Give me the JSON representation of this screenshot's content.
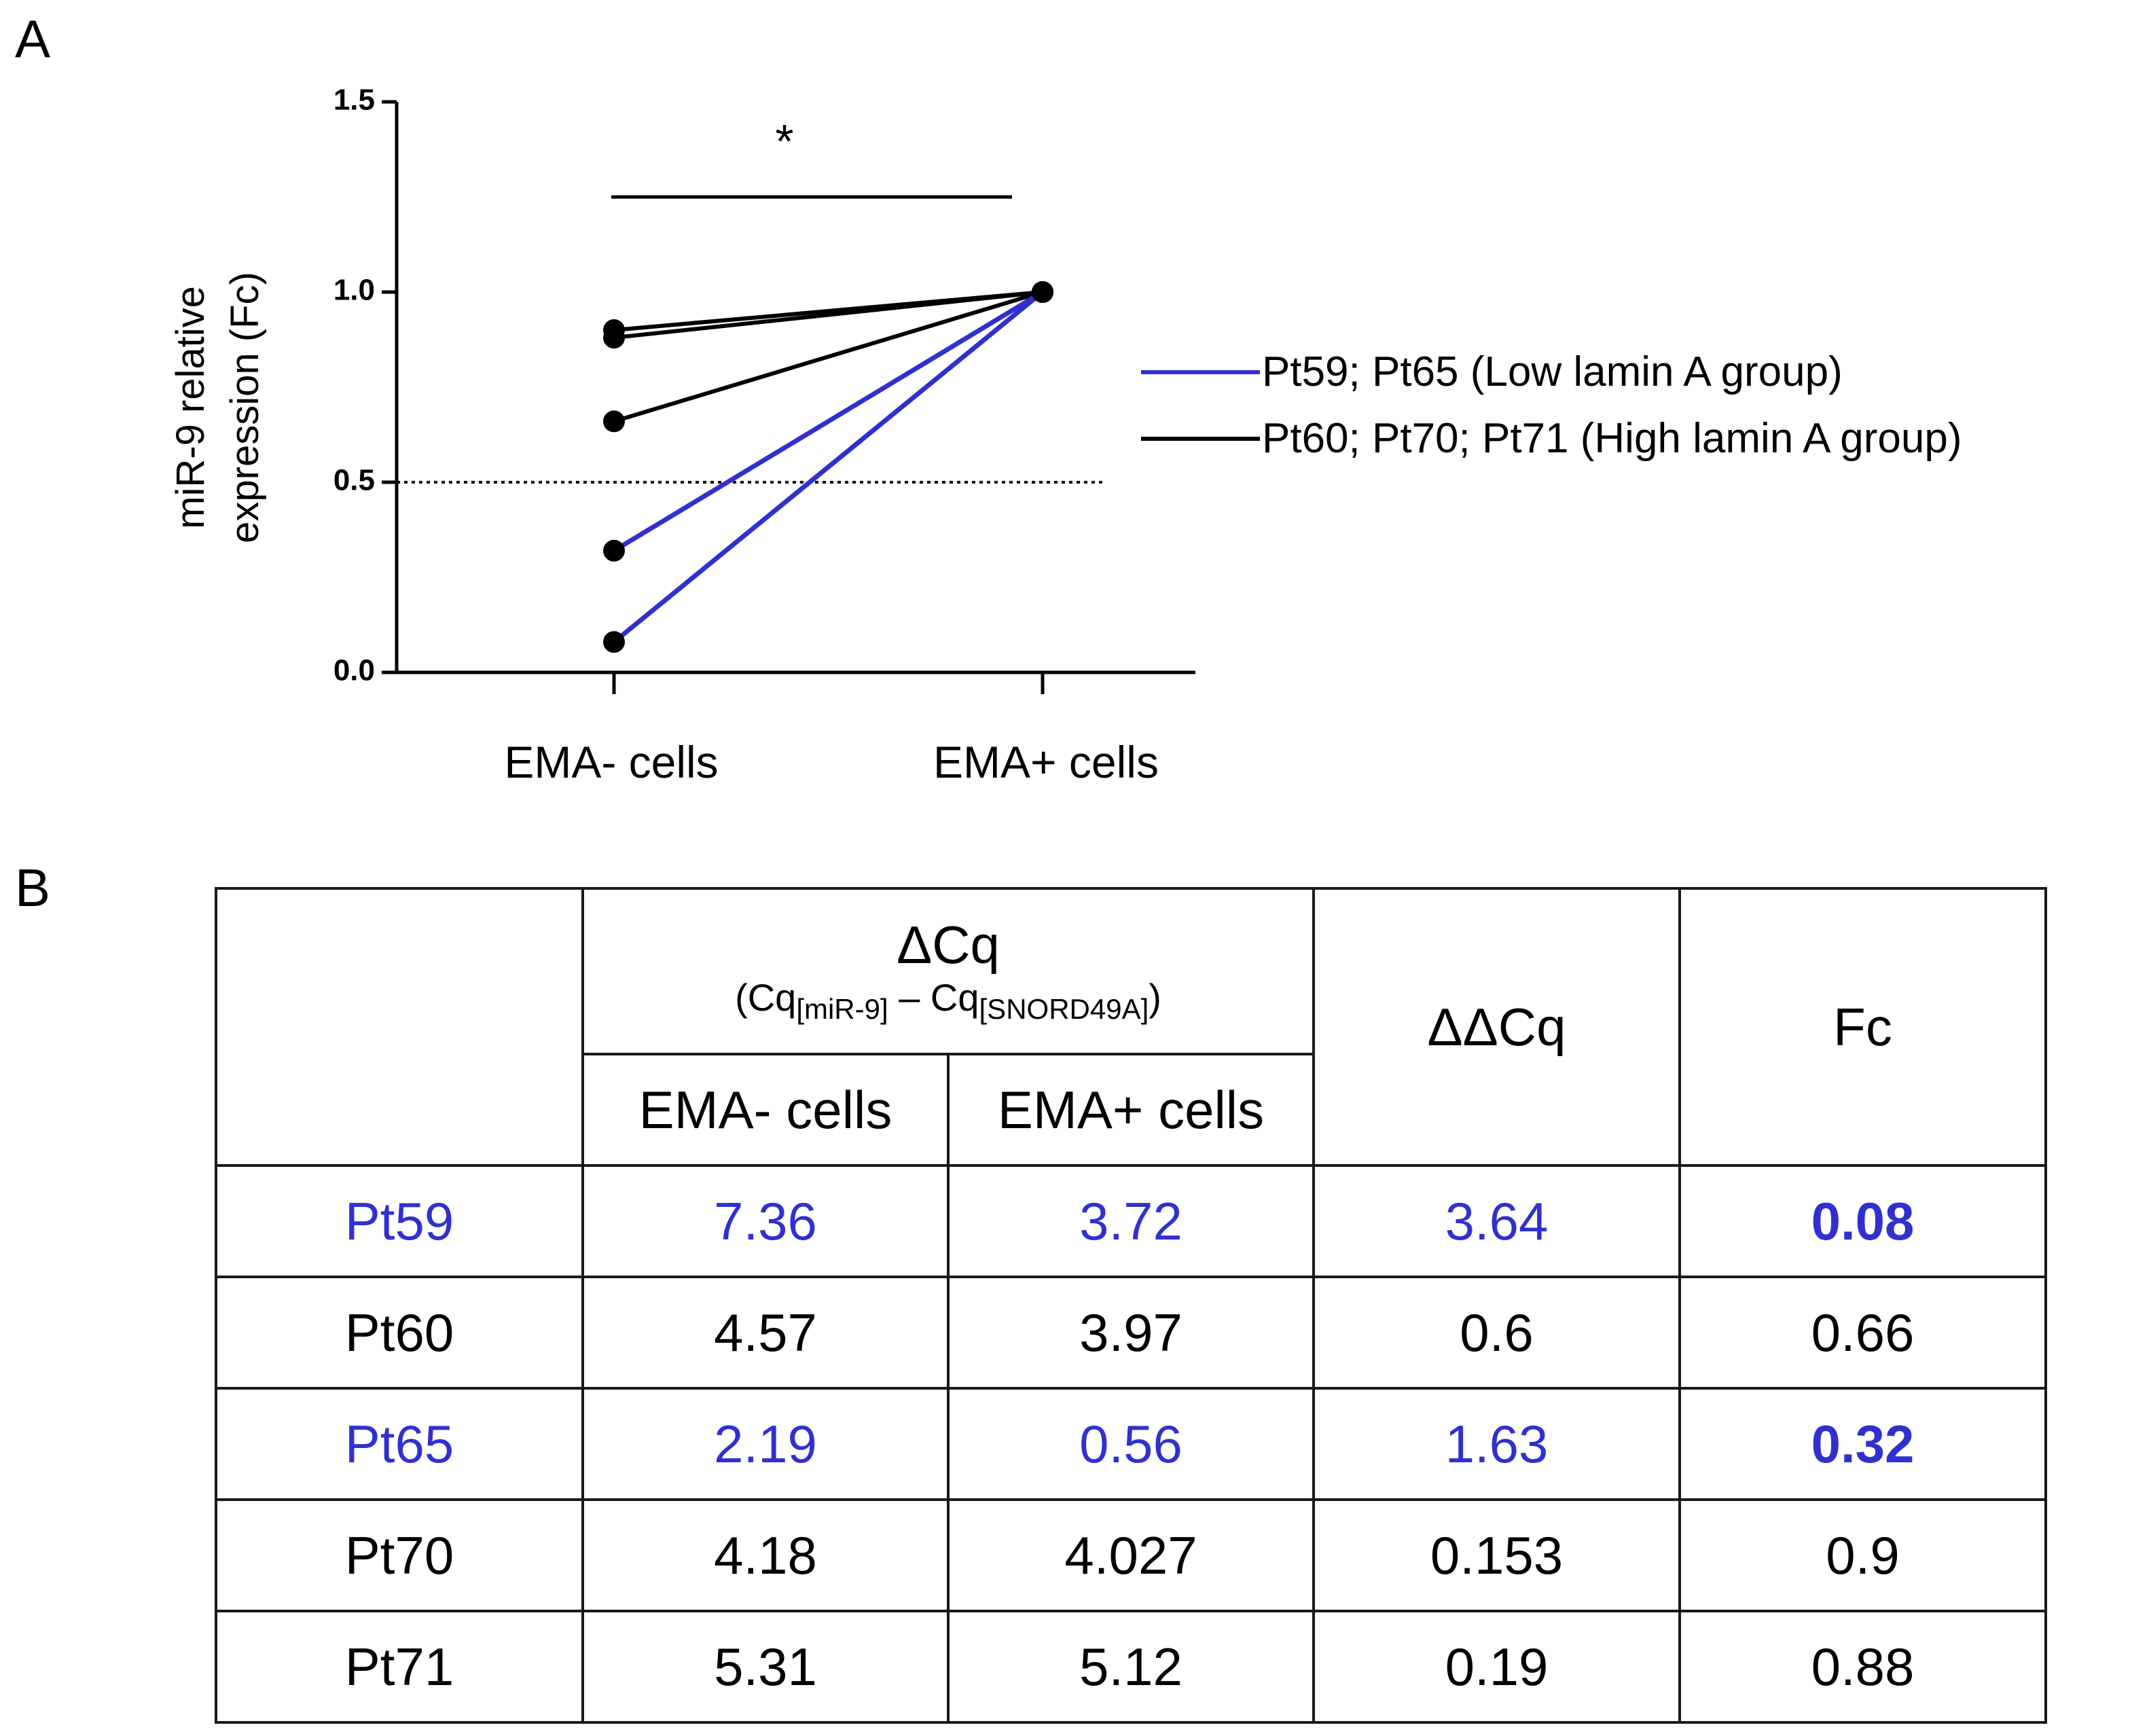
{
  "panels": {
    "a": "A",
    "b": "B"
  },
  "chart_data": {
    "type": "line",
    "categories": [
      "EMA- cells",
      "EMA+ cells"
    ],
    "ylabel_line1": "miR-9 relative",
    "ylabel_line2": "expression (Fc)",
    "ylim": [
      0,
      1.5
    ],
    "yticks": [
      "0.0",
      "0.5",
      "1.0",
      "1.5"
    ],
    "yticks_values": [
      0,
      0.5,
      1.0,
      1.5
    ],
    "threshold": 0.5,
    "significance": "*",
    "series": [
      {
        "name": "Pt59",
        "group": "low",
        "values": [
          0.08,
          1.0
        ]
      },
      {
        "name": "Pt60",
        "group": "high",
        "values": [
          0.66,
          1.0
        ]
      },
      {
        "name": "Pt65",
        "group": "low",
        "values": [
          0.32,
          1.0
        ]
      },
      {
        "name": "Pt70",
        "group": "high",
        "values": [
          0.9,
          1.0
        ]
      },
      {
        "name": "Pt71",
        "group": "high",
        "values": [
          0.88,
          1.0
        ]
      }
    ],
    "legend": [
      {
        "label": "Pt59; Pt65 (Low lamin A group)",
        "color": "#3030d0"
      },
      {
        "label": "Pt60; Pt70; Pt71 (High lamin A group)",
        "color": "#000000"
      }
    ],
    "colors": {
      "low": "#3030d0",
      "high": "#000000"
    }
  },
  "table": {
    "header": {
      "dcq": "ΔCq",
      "dcq_sub_prefix": "(Cq",
      "dcq_sub_1": "[miR-9]",
      "dcq_sub_mid": " – Cq",
      "dcq_sub_2": "[SNORD49A]",
      "dcq_sub_suffix": ")",
      "ema_neg": "EMA- cells",
      "ema_pos": "EMA+ cells",
      "ddcq": "ΔΔCq",
      "fc": "Fc"
    },
    "rows": [
      {
        "patient": "Pt59",
        "ema_neg": "7.36",
        "ema_pos": "3.72",
        "ddcq": "3.64",
        "fc": "0.08"
      },
      {
        "patient": "Pt60",
        "ema_neg": "4.57",
        "ema_pos": "3.97",
        "ddcq": "0.6",
        "fc": "0.66"
      },
      {
        "patient": "Pt65",
        "ema_neg": "2.19",
        "ema_pos": "0.56",
        "ddcq": "1.63",
        "fc": "0.32"
      },
      {
        "patient": "Pt70",
        "ema_neg": "4.18",
        "ema_pos": "4.027",
        "ddcq": "0.153",
        "fc": "0.9"
      },
      {
        "patient": "Pt71",
        "ema_neg": "5.31",
        "ema_pos": "5.12",
        "ddcq": "0.19",
        "fc": "0.88"
      }
    ]
  }
}
